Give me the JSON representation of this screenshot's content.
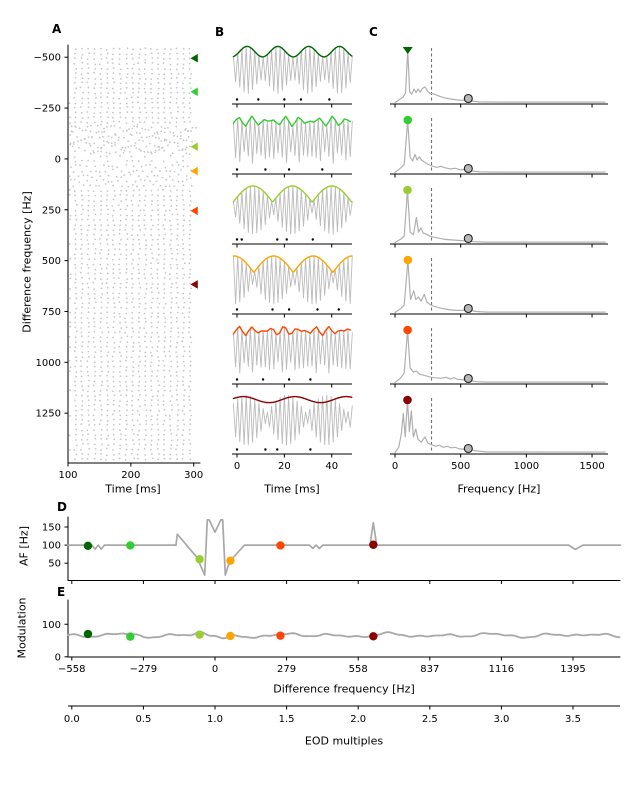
{
  "figure": {
    "panel_letters": {
      "A": "A",
      "B": "B",
      "C": "C",
      "D": "D",
      "E": "E"
    },
    "background": "#ffffff",
    "eodf_hz": 558
  },
  "colors": {
    "stimuli": [
      "#006400",
      "#32cd32",
      "#9acd32",
      "#ffa500",
      "#ff4500",
      "#8b0000"
    ],
    "raster_dots": "#c7c7c7",
    "waveform_gray": "#bbbbbb",
    "spectrum_gray": "#b0b0b0",
    "curve_gray": "#a8a8a8",
    "eod_marker_fill": "#b8b8b8",
    "axis_black": "#000000"
  },
  "chart_data": [
    {
      "id": "A",
      "type": "scatter",
      "xlabel": "Time [ms]",
      "ylabel": "Difference frequency [Hz]",
      "xlim": [
        100,
        310
      ],
      "ylim_top_to_bottom": [
        -560,
        1495
      ],
      "xticks": [
        [
          100,
          "100"
        ],
        [
          200,
          "200"
        ],
        [
          300,
          "300"
        ]
      ],
      "yticks": [
        [
          -500,
          "−500"
        ],
        [
          -250,
          "−250"
        ],
        [
          0,
          "0"
        ],
        [
          250,
          "250"
        ],
        [
          500,
          "500"
        ],
        [
          750,
          "750"
        ],
        [
          1000,
          "1000"
        ],
        [
          1250,
          "1250"
        ]
      ],
      "raster": {
        "df_start": -540,
        "df_step": 24,
        "n_rows": 85,
        "t_window_ms": [
          100,
          303
        ],
        "mean_interval_ms": 10.1,
        "pattern_bands_df": [
          [
            -175,
            -20
          ],
          [
            20,
            135
          ]
        ],
        "sparse_near_df": 0
      },
      "stim_markers": {
        "shape": "caret-left",
        "df": [
          -495,
          -330,
          -60,
          60,
          255,
          617
        ]
      }
    },
    {
      "id": "B",
      "type": "line",
      "xlabel": "Time [ms]",
      "xlim": [
        -1.5,
        49
      ],
      "carrier_hz": 558,
      "xticks": [
        [
          0,
          "0"
        ],
        [
          20,
          "20"
        ],
        [
          40,
          "40"
        ]
      ],
      "rows": [
        {
          "df": -495,
          "color": "#006400",
          "envelope": "sine",
          "env_freq_hz": 77,
          "env_offset": 0.7,
          "env_amp": 0.26,
          "env_phase": -0.5,
          "spike_times_ms": [
            0,
            9,
            20,
            27,
            39
          ]
        },
        {
          "df": -330,
          "color": "#32cd32",
          "envelope": "jagged",
          "env_freq_hz": [
            205,
            148
          ],
          "env_offset": 0.72,
          "env_amp": 0.26,
          "env_phase": 1.7,
          "spike_times_ms": [
            0,
            12,
            22,
            36
          ]
        },
        {
          "df": -60,
          "color": "#9acd32",
          "envelope": "cusp",
          "env_freq_hz": 60,
          "env_offset": 0.18,
          "env_amp": 0.8,
          "env_phase": 0.3,
          "spike_times_ms": [
            0,
            2,
            17,
            21,
            32
          ]
        },
        {
          "df": 60,
          "color": "#ffa500",
          "envelope": "cusp",
          "env_freq_hz": 60,
          "env_offset": 0.16,
          "env_amp": 0.82,
          "env_phase": 1.8,
          "spike_times_ms": [
            0,
            15,
            22,
            34,
            43
          ]
        },
        {
          "df": 255,
          "color": "#ff4500",
          "envelope": "jagged",
          "env_freq_hz": [
            215,
            155
          ],
          "env_offset": 0.74,
          "env_amp": 0.24,
          "env_phase": 1.1,
          "spike_times_ms": [
            0,
            11,
            22,
            31
          ]
        },
        {
          "df": 617,
          "color": "#8b0000",
          "envelope": "sine",
          "env_freq_hz": 46,
          "env_offset": 0.8,
          "env_amp": 0.15,
          "env_phase": 0.8,
          "beat_nodes_hz": 59,
          "spike_times_ms": [
            0,
            12,
            17,
            31
          ]
        }
      ]
    },
    {
      "id": "C",
      "type": "line",
      "xlabel": "Frequency [Hz]",
      "xlim": [
        -40,
        1620
      ],
      "xticks": [
        [
          0,
          "0"
        ],
        [
          500,
          "500"
        ],
        [
          1000,
          "1000"
        ],
        [
          1500,
          "1500"
        ]
      ],
      "dashed_line_hz": 279,
      "eod_marker_hz": 558,
      "rows": [
        {
          "df": -495,
          "color": "#006400",
          "peak_hz": 97,
          "peak_marker": "caret-down",
          "spectrum": [
            [
              0,
              0
            ],
            [
              30,
              0.05
            ],
            [
              60,
              0.1
            ],
            [
              80,
              0.18
            ],
            [
              97,
              1
            ],
            [
              112,
              0.2
            ],
            [
              128,
              0.16
            ],
            [
              145,
              0.26
            ],
            [
              160,
              0.19
            ],
            [
              175,
              0.26
            ],
            [
              192,
              0.2
            ],
            [
              208,
              0.27
            ],
            [
              228,
              0.3
            ],
            [
              248,
              0.22
            ],
            [
              268,
              0.17
            ],
            [
              290,
              0.17
            ],
            [
              310,
              0.15
            ],
            [
              340,
              0.12
            ],
            [
              375,
              0.09
            ],
            [
              420,
              0.07
            ],
            [
              470,
              0.05
            ],
            [
              510,
              0.04
            ],
            [
              545,
              0.05
            ],
            [
              575,
              0.03
            ],
            [
              640,
              0.012
            ],
            [
              800,
              0.008
            ],
            [
              1600,
              0.008
            ]
          ]
        },
        {
          "df": -330,
          "color": "#32cd32",
          "peak_hz": 97,
          "peak_marker": "circle",
          "spectrum": [
            [
              0,
              0
            ],
            [
              40,
              0.08
            ],
            [
              70,
              0.15
            ],
            [
              97,
              1
            ],
            [
              115,
              0.3
            ],
            [
              135,
              0.22
            ],
            [
              152,
              0.35
            ],
            [
              168,
              0.24
            ],
            [
              185,
              0.3
            ],
            [
              202,
              0.24
            ],
            [
              230,
              0.19
            ],
            [
              258,
              0.15
            ],
            [
              288,
              0.12
            ],
            [
              318,
              0.1
            ],
            [
              350,
              0.12
            ],
            [
              382,
              0.09
            ],
            [
              420,
              0.07
            ],
            [
              458,
              0.08
            ],
            [
              500,
              0.05
            ],
            [
              540,
              0.06
            ],
            [
              580,
              0.03
            ],
            [
              650,
              0.012
            ],
            [
              800,
              0.008
            ],
            [
              1600,
              0.008
            ]
          ]
        },
        {
          "df": -60,
          "color": "#9acd32",
          "peak_hz": 95,
          "peak_marker": "circle",
          "spectrum": [
            [
              0,
              0
            ],
            [
              40,
              0.06
            ],
            [
              70,
              0.12
            ],
            [
              95,
              1
            ],
            [
              115,
              0.2
            ],
            [
              140,
              0.15
            ],
            [
              163,
              0.48
            ],
            [
              180,
              0.2
            ],
            [
              198,
              0.28
            ],
            [
              215,
              0.18
            ],
            [
              240,
              0.16
            ],
            [
              268,
              0.12
            ],
            [
              300,
              0.1
            ],
            [
              340,
              0.08
            ],
            [
              380,
              0.06
            ],
            [
              430,
              0.05
            ],
            [
              480,
              0.04
            ],
            [
              540,
              0.03
            ],
            [
              600,
              0.015
            ],
            [
              700,
              0.008
            ],
            [
              1600,
              0.008
            ]
          ]
        },
        {
          "df": 60,
          "color": "#ffa500",
          "peak_hz": 98,
          "peak_marker": "circle",
          "spectrum": [
            [
              0,
              0
            ],
            [
              40,
              0.07
            ],
            [
              70,
              0.14
            ],
            [
              98,
              1
            ],
            [
              118,
              0.25
            ],
            [
              143,
              0.42
            ],
            [
              158,
              0.25
            ],
            [
              178,
              0.3
            ],
            [
              198,
              0.22
            ],
            [
              223,
              0.35
            ],
            [
              243,
              0.2
            ],
            [
              268,
              0.15
            ],
            [
              298,
              0.12
            ],
            [
              338,
              0.09
            ],
            [
              378,
              0.07
            ],
            [
              420,
              0.05
            ],
            [
              468,
              0.04
            ],
            [
              520,
              0.04
            ],
            [
              558,
              0.05
            ],
            [
              620,
              0.02
            ],
            [
              700,
              0.008
            ],
            [
              1600,
              0.008
            ]
          ]
        },
        {
          "df": 255,
          "color": "#ff4500",
          "peak_hz": 96,
          "peak_marker": "circle",
          "spectrum": [
            [
              0,
              0
            ],
            [
              40,
              0.08
            ],
            [
              70,
              0.18
            ],
            [
              96,
              1
            ],
            [
              115,
              0.28
            ],
            [
              140,
              0.2
            ],
            [
              163,
              0.22
            ],
            [
              188,
              0.16
            ],
            [
              218,
              0.14
            ],
            [
              248,
              0.12
            ],
            [
              278,
              0.1
            ],
            [
              310,
              0.09
            ],
            [
              350,
              0.08
            ],
            [
              388,
              0.1
            ],
            [
              420,
              0.07
            ],
            [
              450,
              0.09
            ],
            [
              480,
              0.06
            ],
            [
              520,
              0.05
            ],
            [
              558,
              0.04
            ],
            [
              620,
              0.015
            ],
            [
              700,
              0.008
            ],
            [
              1600,
              0.008
            ]
          ]
        },
        {
          "df": 617,
          "color": "#8b0000",
          "peak_hz": 95,
          "peak_marker": "circle",
          "spectrum": [
            [
              0,
              0
            ],
            [
              28,
              0.1
            ],
            [
              48,
              0.35
            ],
            [
              63,
              0.75
            ],
            [
              78,
              0.3
            ],
            [
              95,
              1
            ],
            [
              110,
              0.4
            ],
            [
              124,
              0.8
            ],
            [
              140,
              0.3
            ],
            [
              158,
              0.45
            ],
            [
              175,
              0.25
            ],
            [
              200,
              0.2
            ],
            [
              228,
              0.3
            ],
            [
              250,
              0.18
            ],
            [
              278,
              0.15
            ],
            [
              308,
              0.12
            ],
            [
              338,
              0.14
            ],
            [
              368,
              0.1
            ],
            [
              398,
              0.12
            ],
            [
              428,
              0.09
            ],
            [
              458,
              0.1
            ],
            [
              490,
              0.07
            ],
            [
              530,
              0.06
            ],
            [
              570,
              0.05
            ],
            [
              620,
              0.03
            ],
            [
              700,
              0.01
            ],
            [
              1600,
              0.008
            ]
          ]
        }
      ]
    },
    {
      "id": "D",
      "type": "line",
      "ylabel": "AF [Hz]",
      "xlim": [
        -573,
        1580
      ],
      "ylim": [
        0,
        178
      ],
      "yticks": [
        [
          50,
          "50"
        ],
        [
          100,
          "100"
        ],
        [
          150,
          "150"
        ]
      ],
      "line_points": [
        [
          -573,
          100
        ],
        [
          -480,
          100
        ],
        [
          -467,
          89
        ],
        [
          -455,
          100
        ],
        [
          -443,
          89
        ],
        [
          -431,
          100
        ],
        [
          -152,
          100
        ],
        [
          -147,
          130
        ],
        [
          -70,
          66
        ],
        [
          -40,
          17
        ],
        [
          -30,
          170
        ],
        [
          -23,
          170
        ],
        [
          0,
          136
        ],
        [
          23,
          170
        ],
        [
          30,
          170
        ],
        [
          40,
          17
        ],
        [
          52,
          44
        ],
        [
          66,
          62
        ],
        [
          115,
          100
        ],
        [
          368,
          100
        ],
        [
          381,
          91
        ],
        [
          394,
          100
        ],
        [
          407,
          91
        ],
        [
          420,
          100
        ],
        [
          604,
          100
        ],
        [
          617,
          162
        ],
        [
          630,
          100
        ],
        [
          1378,
          100
        ],
        [
          1404,
          88
        ],
        [
          1434,
          100
        ],
        [
          1580,
          100
        ]
      ],
      "dots": [
        {
          "df": -495,
          "af": 98,
          "color": "#006400"
        },
        {
          "df": -330,
          "af": 99,
          "color": "#32cd32"
        },
        {
          "df": -60,
          "af": 61,
          "color": "#9acd32"
        },
        {
          "df": 60,
          "af": 57,
          "color": "#ffa500"
        },
        {
          "df": 255,
          "af": 99,
          "color": "#ff4500"
        },
        {
          "df": 617,
          "af": 101,
          "color": "#8b0000"
        }
      ]
    },
    {
      "id": "E",
      "type": "line",
      "ylabel": "Modulation",
      "xlabel": "Difference frequency [Hz]",
      "xlim": [
        -573,
        1580
      ],
      "ylim": [
        0,
        175
      ],
      "yticks": [
        [
          0,
          "0"
        ],
        [
          100,
          "100"
        ]
      ],
      "xticks": [
        [
          -558,
          "−558"
        ],
        [
          -279,
          "−279"
        ],
        [
          0,
          "0"
        ],
        [
          279,
          "279"
        ],
        [
          558,
          "558"
        ],
        [
          837,
          "837"
        ],
        [
          1116,
          "1116"
        ],
        [
          1395,
          "1395"
        ]
      ],
      "line_base": 66,
      "bump": {
        "center_df": -58,
        "height": 9
      },
      "dip": {
        "center_df": 38,
        "depth": 13
      },
      "dots": [
        {
          "df": -495,
          "mod": 70,
          "color": "#006400"
        },
        {
          "df": -330,
          "mod": 62,
          "color": "#32cd32"
        },
        {
          "df": -60,
          "mod": 68,
          "color": "#9acd32"
        },
        {
          "df": 60,
          "mod": 64,
          "color": "#ffa500"
        },
        {
          "df": 255,
          "mod": 65,
          "color": "#ff4500"
        },
        {
          "df": 617,
          "mod": 63,
          "color": "#8b0000"
        }
      ]
    },
    {
      "id": "EOD-axis",
      "type": "axis",
      "xlabel": "EOD multiples",
      "eodf_hz": 558,
      "xticks": [
        [
          0,
          "0.0"
        ],
        [
          0.5,
          "0.5"
        ],
        [
          1,
          "1.0"
        ],
        [
          1.5,
          "1.5"
        ],
        [
          2,
          "2.0"
        ],
        [
          2.5,
          "2.5"
        ],
        [
          3,
          "3.0"
        ],
        [
          3.5,
          "3.5"
        ]
      ]
    }
  ]
}
